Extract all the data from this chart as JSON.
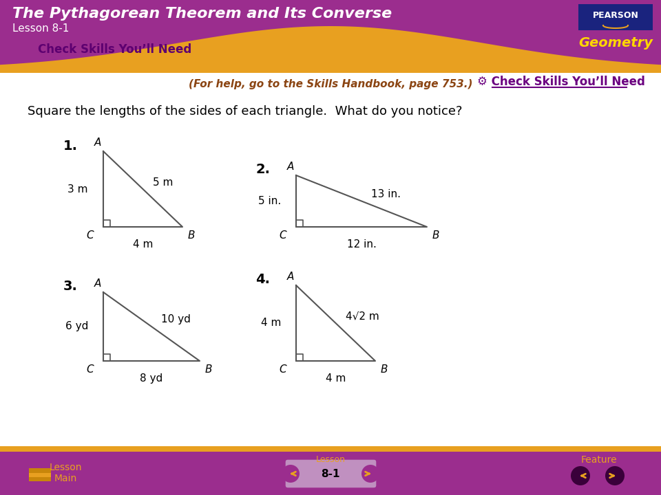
{
  "title": "The Pythagorean Theorem and Its Converse",
  "lesson": "Lesson 8-1",
  "subtitle": "Check Skills You’ll Need",
  "help_text": "(For help, go to the Skills Handbook, page 753.)",
  "question": "Square the lengths of the sides of each triangle.  What do you notice?",
  "check_skills_link": "⚙ Check Skills You’ll Need",
  "lesson_number": "8-1",
  "header_purple": "#9B2D8E",
  "header_gold": "#E8A020",
  "footer_purple": "#9B2D8E",
  "pearson_box_color": "#1A237E",
  "geometry_text_color": "#FFD700",
  "title_text_color": "#FFFFFF",
  "subtitle_color": "#5D0070",
  "help_text_color": "#8B4513",
  "question_color": "#000000",
  "triangle_color": "#777777",
  "label_color": "#000000",
  "number_color": "#000000",
  "check_link_color": "#6B0080",
  "triangles": [
    {
      "number": "1.",
      "sides": {
        "AC": "3 m",
        "AB": "5 m",
        "CB": "4 m"
      }
    },
    {
      "number": "2.",
      "sides": {
        "AC": "5 in.",
        "AB": "13 in.",
        "CB": "12 in."
      }
    },
    {
      "number": "3.",
      "sides": {
        "AC": "6 yd",
        "AB": "10 yd",
        "CB": "8 yd"
      }
    },
    {
      "number": "4.",
      "sides": {
        "AC": "4 m",
        "AB": "4√2 m",
        "CB": "4 m"
      }
    }
  ]
}
